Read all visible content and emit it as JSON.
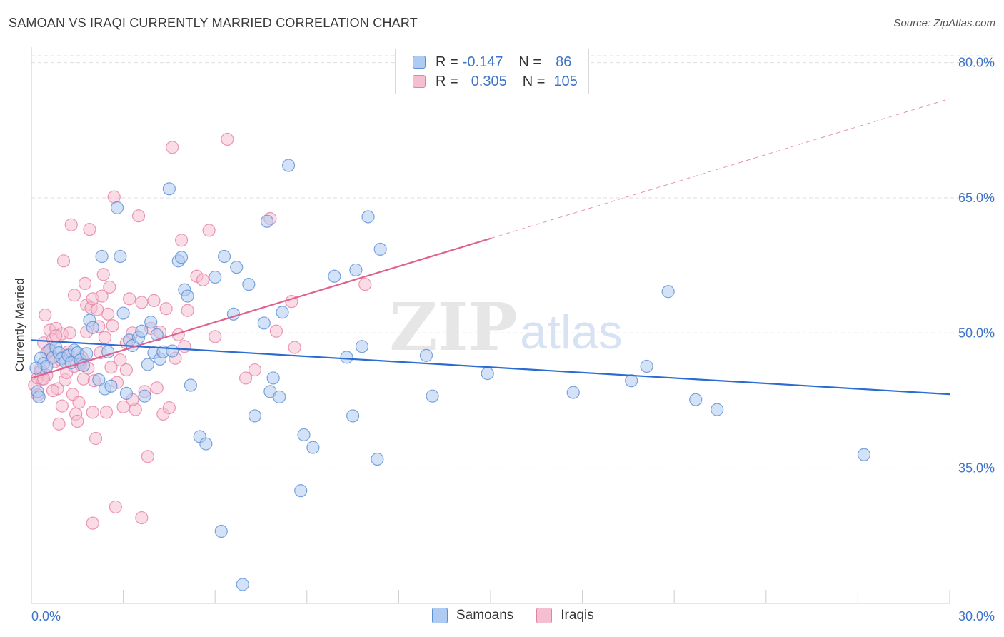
{
  "title": "SAMOAN VS IRAQI CURRENTLY MARRIED CORRELATION CHART",
  "source": "Source: ZipAtlas.com",
  "watermark": {
    "zip": "ZIP",
    "atlas": "atlas"
  },
  "legend": {
    "rows": [
      {
        "r_label": "R =",
        "r_value": "-0.147",
        "n_label": "N =",
        "n_value": "86"
      },
      {
        "r_label": "R =",
        "r_value": "0.305",
        "n_label": "N =",
        "n_value": "105"
      }
    ]
  },
  "bottom_legend": {
    "samoans": "Samoans",
    "iraqis": "Iraqis"
  },
  "colors": {
    "samoan_fill": "#aecbf1",
    "samoan_stroke": "#5b8fd6",
    "samoan_line": "#2a6cd0",
    "iraqi_fill": "#f6bfd1",
    "iraqi_stroke": "#e67fa3",
    "iraqi_line": "#e0608f",
    "axis_text": "#3d73c9",
    "grid": "#dddddd"
  },
  "chart_data": {
    "type": "scatter",
    "title": "SAMOAN VS IRAQI CURRENTLY MARRIED CORRELATION CHART",
    "xlabel": "",
    "ylabel": "Currently Married",
    "xlim": [
      0,
      30
    ],
    "ylim": [
      20,
      81
    ],
    "x_tick_labels": [
      "0.0%",
      "30.0%"
    ],
    "y_ticks": [
      35,
      50,
      65,
      80
    ],
    "y_tick_labels": [
      "35.0%",
      "50.0%",
      "65.0%",
      "80.0%"
    ],
    "series": [
      {
        "name": "Samoans",
        "r": -0.147,
        "n": 86,
        "trend": {
          "x": [
            0,
            30
          ],
          "y": [
            49.2,
            43.2
          ],
          "solid_until": 30
        },
        "points": [
          [
            0.3,
            47.2
          ],
          [
            0.4,
            46.6
          ],
          [
            0.5,
            46.3
          ],
          [
            0.6,
            48.1
          ],
          [
            0.7,
            47.3
          ],
          [
            0.8,
            48.4
          ],
          [
            0.9,
            47.8
          ],
          [
            1.0,
            47.2
          ],
          [
            1.1,
            46.8
          ],
          [
            1.2,
            47.5
          ],
          [
            1.3,
            46.7
          ],
          [
            1.4,
            48.1
          ],
          [
            1.5,
            47.8
          ],
          [
            1.6,
            47.0
          ],
          [
            1.7,
            46.4
          ],
          [
            1.8,
            47.7
          ],
          [
            1.9,
            51.4
          ],
          [
            2.0,
            50.6
          ],
          [
            2.2,
            44.8
          ],
          [
            2.3,
            58.5
          ],
          [
            2.4,
            43.8
          ],
          [
            2.5,
            47.9
          ],
          [
            2.6,
            44.1
          ],
          [
            2.8,
            63.9
          ],
          [
            2.9,
            58.5
          ],
          [
            3.0,
            52.2
          ],
          [
            3.1,
            43.3
          ],
          [
            3.2,
            49.2
          ],
          [
            3.3,
            48.6
          ],
          [
            3.5,
            49.5
          ],
          [
            3.6,
            50.2
          ],
          [
            3.7,
            43.0
          ],
          [
            3.8,
            46.5
          ],
          [
            3.9,
            51.2
          ],
          [
            4.0,
            47.8
          ],
          [
            4.1,
            49.8
          ],
          [
            4.2,
            47.1
          ],
          [
            4.3,
            47.9
          ],
          [
            4.5,
            66.0
          ],
          [
            4.6,
            48.0
          ],
          [
            4.8,
            58.0
          ],
          [
            4.9,
            58.4
          ],
          [
            5.0,
            54.8
          ],
          [
            5.1,
            54.1
          ],
          [
            5.2,
            44.2
          ],
          [
            5.5,
            38.5
          ],
          [
            5.7,
            37.7
          ],
          [
            6.0,
            56.2
          ],
          [
            6.2,
            28.0
          ],
          [
            6.3,
            58.5
          ],
          [
            6.6,
            52.1
          ],
          [
            6.7,
            57.3
          ],
          [
            6.9,
            22.1
          ],
          [
            7.1,
            55.4
          ],
          [
            7.3,
            40.8
          ],
          [
            7.6,
            51.1
          ],
          [
            7.7,
            62.4
          ],
          [
            7.8,
            43.5
          ],
          [
            7.9,
            45.0
          ],
          [
            8.1,
            42.9
          ],
          [
            8.2,
            52.3
          ],
          [
            8.4,
            68.6
          ],
          [
            8.8,
            32.5
          ],
          [
            8.9,
            38.7
          ],
          [
            9.2,
            37.3
          ],
          [
            9.9,
            56.3
          ],
          [
            10.3,
            47.3
          ],
          [
            10.5,
            40.8
          ],
          [
            10.6,
            57.0
          ],
          [
            10.8,
            48.5
          ],
          [
            11.0,
            62.9
          ],
          [
            11.3,
            36.0
          ],
          [
            11.4,
            59.3
          ],
          [
            12.9,
            47.5
          ],
          [
            13.1,
            43.0
          ],
          [
            14.9,
            45.5
          ],
          [
            17.7,
            43.4
          ],
          [
            19.6,
            44.7
          ],
          [
            20.1,
            46.3
          ],
          [
            20.8,
            54.6
          ],
          [
            21.7,
            42.6
          ],
          [
            22.4,
            41.5
          ],
          [
            27.2,
            36.5
          ],
          [
            0.2,
            43.5
          ],
          [
            0.15,
            46.1
          ],
          [
            0.25,
            42.9
          ]
        ]
      },
      {
        "name": "Iraqis",
        "r": 0.305,
        "n": 105,
        "trend": {
          "x": [
            0,
            30
          ],
          "y": [
            45.0,
            76.0
          ],
          "solid_until": 15
        },
        "points": [
          [
            0.1,
            44.2
          ],
          [
            0.2,
            43.1
          ],
          [
            0.2,
            45.0
          ],
          [
            0.3,
            46.0
          ],
          [
            0.35,
            44.9
          ],
          [
            0.4,
            48.9
          ],
          [
            0.45,
            52.0
          ],
          [
            0.5,
            45.3
          ],
          [
            0.55,
            48.0
          ],
          [
            0.6,
            50.3
          ],
          [
            0.65,
            47.2
          ],
          [
            0.7,
            49.3
          ],
          [
            0.75,
            46.8
          ],
          [
            0.8,
            50.5
          ],
          [
            0.85,
            43.8
          ],
          [
            0.9,
            39.9
          ],
          [
            0.95,
            47.0
          ],
          [
            1.0,
            49.9
          ],
          [
            1.05,
            58.0
          ],
          [
            1.1,
            44.8
          ],
          [
            1.15,
            45.6
          ],
          [
            1.2,
            47.6
          ],
          [
            1.25,
            50.0
          ],
          [
            1.3,
            62.0
          ],
          [
            1.35,
            43.2
          ],
          [
            1.4,
            54.2
          ],
          [
            1.45,
            41.0
          ],
          [
            1.5,
            40.2
          ],
          [
            1.55,
            42.3
          ],
          [
            1.6,
            46.7
          ],
          [
            1.65,
            47.3
          ],
          [
            1.7,
            44.9
          ],
          [
            1.75,
            55.5
          ],
          [
            1.8,
            53.1
          ],
          [
            1.85,
            46.1
          ],
          [
            1.9,
            61.5
          ],
          [
            1.95,
            52.8
          ],
          [
            2.0,
            53.8
          ],
          [
            2.05,
            44.7
          ],
          [
            2.1,
            38.3
          ],
          [
            2.15,
            52.6
          ],
          [
            2.2,
            50.7
          ],
          [
            2.25,
            47.8
          ],
          [
            2.3,
            54.1
          ],
          [
            2.35,
            56.5
          ],
          [
            2.4,
            49.5
          ],
          [
            2.45,
            41.2
          ],
          [
            2.5,
            52.1
          ],
          [
            2.55,
            55.1
          ],
          [
            2.6,
            46.2
          ],
          [
            2.65,
            50.8
          ],
          [
            2.7,
            65.1
          ],
          [
            2.75,
            30.7
          ],
          [
            2.8,
            44.5
          ],
          [
            2.9,
            47.0
          ],
          [
            3.0,
            41.8
          ],
          [
            3.1,
            48.9
          ],
          [
            3.2,
            53.8
          ],
          [
            3.3,
            50.0
          ],
          [
            3.4,
            41.5
          ],
          [
            3.5,
            63.0
          ],
          [
            3.6,
            29.5
          ],
          [
            3.7,
            43.5
          ],
          [
            3.8,
            36.3
          ],
          [
            3.9,
            50.5
          ],
          [
            4.0,
            53.6
          ],
          [
            4.1,
            43.9
          ],
          [
            4.2,
            50.1
          ],
          [
            4.3,
            41.0
          ],
          [
            4.4,
            52.7
          ],
          [
            4.5,
            41.7
          ],
          [
            4.6,
            70.6
          ],
          [
            4.7,
            47.2
          ],
          [
            4.8,
            49.8
          ],
          [
            4.9,
            60.3
          ],
          [
            5.0,
            48.5
          ],
          [
            5.1,
            52.5
          ],
          [
            5.4,
            56.3
          ],
          [
            5.6,
            55.9
          ],
          [
            5.8,
            61.4
          ],
          [
            6.0,
            49.6
          ],
          [
            6.4,
            71.5
          ],
          [
            7.0,
            45.0
          ],
          [
            7.3,
            45.9
          ],
          [
            7.8,
            62.7
          ],
          [
            8.0,
            50.2
          ],
          [
            8.5,
            53.5
          ],
          [
            8.6,
            48.4
          ],
          [
            10.9,
            55.4
          ],
          [
            2.0,
            28.9
          ],
          [
            0.3,
            45.7
          ],
          [
            0.4,
            44.9
          ],
          [
            0.5,
            47.8
          ],
          [
            0.6,
            48.1
          ],
          [
            0.7,
            43.6
          ],
          [
            0.8,
            49.7
          ],
          [
            1.0,
            41.9
          ],
          [
            1.2,
            47.9
          ],
          [
            1.4,
            46.3
          ],
          [
            1.6,
            46.5
          ],
          [
            1.8,
            50.1
          ],
          [
            2.0,
            41.2
          ],
          [
            3.1,
            45.9
          ],
          [
            3.3,
            42.6
          ],
          [
            3.6,
            53.4
          ]
        ]
      }
    ]
  }
}
